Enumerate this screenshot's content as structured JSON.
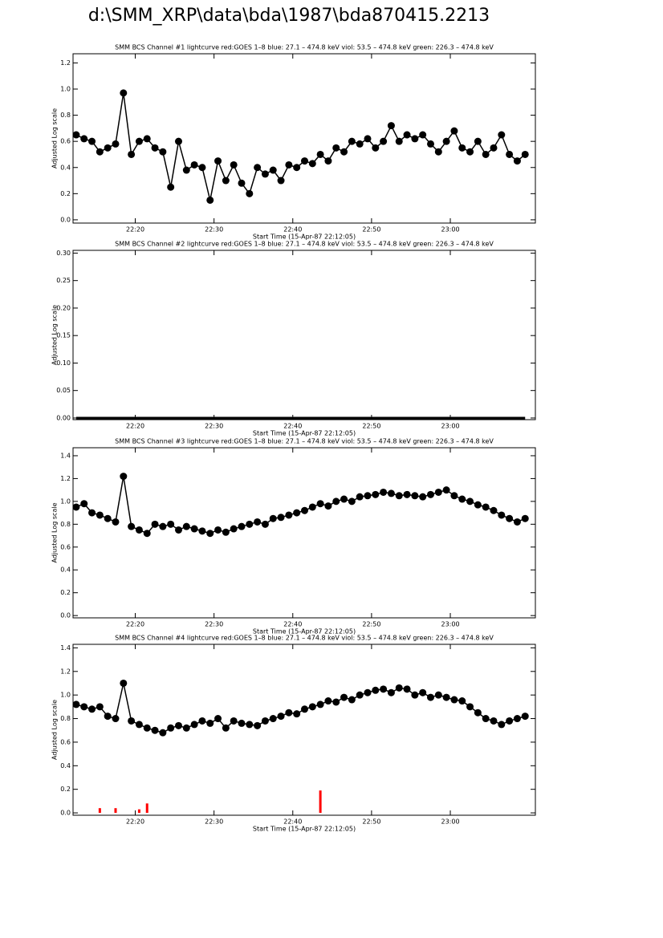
{
  "title": "d:\\SMM_XRP\\data\\bda\\1987\\bda870415.2213",
  "chart_data": [
    {
      "type": "line",
      "title": "SMM BCS Channel #1 lightcurve  red:GOES 1–8  blue: 27.1 – 474.8 keV  viol: 53.5 – 474.8 keV  green: 226.3 – 474.8 keV",
      "x_label": "Start Time (15-Apr-87 22:12:05)",
      "y_label": "Adjusted Log scale",
      "xlim": [
        1332.1,
        1390.8
      ],
      "ylim": [
        -0.025,
        1.27
      ],
      "xticks": [
        {
          "value": 1340,
          "label": "22:20"
        },
        {
          "value": 1350,
          "label": "22:30"
        },
        {
          "value": 1360,
          "label": "22:40"
        },
        {
          "value": 1370,
          "label": "22:50"
        },
        {
          "value": 1380,
          "label": "23:00"
        }
      ],
      "yticks": [
        {
          "value": 0,
          "label": "0.0"
        },
        0.2,
        0.4,
        0.6,
        0.8,
        {
          "value": 1,
          "label": "1.0"
        },
        1.2
      ],
      "x": [
        1332.5,
        1333.5,
        1334.5,
        1335.5,
        1336.5,
        1337.5,
        1338.5,
        1339.5,
        1340.5,
        1341.5,
        1342.5,
        1343.5,
        1344.5,
        1345.5,
        1346.5,
        1347.5,
        1348.5,
        1349.5,
        1350.5,
        1351.5,
        1352.5,
        1353.5,
        1354.5,
        1355.5,
        1356.5,
        1357.5,
        1358.5,
        1359.5,
        1360.5,
        1361.5,
        1362.5,
        1363.5,
        1364.5,
        1365.5,
        1366.5,
        1367.5,
        1368.5,
        1369.5,
        1370.5,
        1371.5,
        1372.5,
        1373.5,
        1374.5,
        1375.5,
        1376.5,
        1377.5,
        1378.5,
        1379.5,
        1380.5,
        1381.5,
        1382.5,
        1383.5,
        1384.5,
        1385.5,
        1386.5,
        1387.5,
        1388.5,
        1389.5
      ],
      "series": [
        {
          "color": "#000000",
          "marker": "circle",
          "values": [
            0.65,
            0.62,
            0.6,
            0.52,
            0.55,
            0.58,
            0.97,
            0.5,
            0.6,
            0.62,
            0.55,
            0.52,
            0.25,
            0.6,
            0.38,
            0.42,
            0.4,
            0.15,
            0.45,
            0.3,
            0.42,
            0.28,
            0.2,
            0.4,
            0.35,
            0.38,
            0.3,
            0.42,
            0.4,
            0.45,
            0.43,
            0.5,
            0.45,
            0.55,
            0.52,
            0.6,
            0.58,
            0.62,
            0.55,
            0.6,
            0.72,
            0.6,
            0.65,
            0.62,
            0.65,
            0.58,
            0.52,
            0.6,
            0.68,
            0.55,
            0.52,
            0.6,
            0.5,
            0.55,
            0.65,
            0.5,
            0.45,
            0.5
          ]
        }
      ]
    },
    {
      "type": "line",
      "title": "SMM BCS Channel #2 lightcurve  red:GOES 1–8  blue: 27.1 – 474.8 keV  viol: 53.5 – 474.8 keV  green: 226.3 – 474.8 keV",
      "x_label": "Start Time (15-Apr-87 22:12:05)",
      "y_label": "Adjusted Log scale",
      "xlim": [
        1332.1,
        1390.8
      ],
      "ylim": [
        -0.003,
        0.305
      ],
      "xticks": [
        {
          "value": 1340,
          "label": "22:20"
        },
        {
          "value": 1350,
          "label": "22:30"
        },
        {
          "value": 1360,
          "label": "22:40"
        },
        {
          "value": 1370,
          "label": "22:50"
        },
        {
          "value": 1380,
          "label": "23:00"
        }
      ],
      "yticks": [
        {
          "value": 0,
          "label": "0.00"
        },
        0.05,
        {
          "value": 0.1,
          "label": "0.10"
        },
        0.15,
        {
          "value": 0.2,
          "label": "0.20"
        },
        0.25,
        {
          "value": 0.3,
          "label": "0.30"
        }
      ],
      "x": [
        1332.5,
        1333.5,
        1334.5,
        1335.5,
        1336.5,
        1337.5,
        1338.5,
        1339.5,
        1340.5,
        1341.5,
        1342.5,
        1343.5,
        1344.5,
        1345.5,
        1346.5,
        1347.5,
        1348.5,
        1349.5,
        1350.5,
        1351.5,
        1352.5,
        1353.5,
        1354.5,
        1355.5,
        1356.5,
        1357.5,
        1358.5,
        1359.5,
        1360.5,
        1361.5,
        1362.5,
        1363.5,
        1364.5,
        1365.5,
        1366.5,
        1367.5,
        1368.5,
        1369.5,
        1370.5,
        1371.5,
        1372.5,
        1373.5,
        1374.5,
        1375.5,
        1376.5,
        1377.5,
        1378.5,
        1379.5,
        1380.5,
        1381.5,
        1382.5,
        1383.5,
        1384.5,
        1385.5,
        1386.5,
        1387.5,
        1388.5,
        1389.5
      ],
      "series": [
        {
          "color": "#000000",
          "marker": "none",
          "values": [
            0,
            0,
            0,
            0,
            0,
            0,
            0,
            0,
            0,
            0,
            0,
            0,
            0,
            0,
            0,
            0,
            0,
            0,
            0,
            0,
            0,
            0,
            0,
            0,
            0,
            0,
            0,
            0,
            0,
            0,
            0,
            0,
            0,
            0,
            0,
            0,
            0,
            0,
            0,
            0,
            0,
            0,
            0,
            0,
            0,
            0,
            0,
            0,
            0,
            0,
            0,
            0,
            0,
            0,
            0,
            0,
            0,
            0
          ]
        }
      ]
    },
    {
      "type": "line",
      "title": "SMM BCS Channel #3 lightcurve  red:GOES 1–8  blue: 27.1 – 474.8 keV  viol: 53.5 – 474.8 keV  green: 226.3 – 474.8 keV",
      "x_label": "Start Time (15-Apr-87 22:12:05)",
      "y_label": "Adjusted Log scale",
      "xlim": [
        1332.1,
        1390.8
      ],
      "ylim": [
        -0.02,
        1.47
      ],
      "xticks": [
        {
          "value": 1340,
          "label": "22:20"
        },
        {
          "value": 1350,
          "label": "22:30"
        },
        {
          "value": 1360,
          "label": "22:40"
        },
        {
          "value": 1370,
          "label": "22:50"
        },
        {
          "value": 1380,
          "label": "23:00"
        }
      ],
      "yticks": [
        {
          "value": 0,
          "label": "0.0"
        },
        0.2,
        0.4,
        0.6,
        0.8,
        {
          "value": 1,
          "label": "1.0"
        },
        1.2,
        1.4
      ],
      "x": [
        1332.5,
        1333.5,
        1334.5,
        1335.5,
        1336.5,
        1337.5,
        1338.5,
        1339.5,
        1340.5,
        1341.5,
        1342.5,
        1343.5,
        1344.5,
        1345.5,
        1346.5,
        1347.5,
        1348.5,
        1349.5,
        1350.5,
        1351.5,
        1352.5,
        1353.5,
        1354.5,
        1355.5,
        1356.5,
        1357.5,
        1358.5,
        1359.5,
        1360.5,
        1361.5,
        1362.5,
        1363.5,
        1364.5,
        1365.5,
        1366.5,
        1367.5,
        1368.5,
        1369.5,
        1370.5,
        1371.5,
        1372.5,
        1373.5,
        1374.5,
        1375.5,
        1376.5,
        1377.5,
        1378.5,
        1379.5,
        1380.5,
        1381.5,
        1382.5,
        1383.5,
        1384.5,
        1385.5,
        1386.5,
        1387.5,
        1388.5,
        1389.5
      ],
      "series": [
        {
          "color": "#000000",
          "marker": "circle",
          "values": [
            0.95,
            0.98,
            0.9,
            0.88,
            0.85,
            0.82,
            1.22,
            0.78,
            0.75,
            0.72,
            0.8,
            0.78,
            0.8,
            0.75,
            0.78,
            0.76,
            0.74,
            0.72,
            0.75,
            0.73,
            0.76,
            0.78,
            0.8,
            0.82,
            0.8,
            0.85,
            0.86,
            0.88,
            0.9,
            0.92,
            0.95,
            0.98,
            0.96,
            1.0,
            1.02,
            1.0,
            1.04,
            1.05,
            1.06,
            1.08,
            1.07,
            1.05,
            1.06,
            1.05,
            1.04,
            1.06,
            1.08,
            1.1,
            1.05,
            1.02,
            1.0,
            0.97,
            0.95,
            0.92,
            0.88,
            0.85,
            0.82,
            0.85
          ]
        }
      ]
    },
    {
      "type": "line",
      "title": "SMM BCS Channel #4 lightcurve  red:GOES 1–8  blue: 27.1 – 474.8 keV  viol: 53.5 – 474.8 keV  green: 226.3 – 474.8 keV",
      "x_label": "Start Time (15-Apr-87 22:12:05)",
      "y_label": "Adjusted Log scale",
      "xlim": [
        1332.1,
        1390.8
      ],
      "ylim": [
        -0.02,
        1.43
      ],
      "xticks": [
        {
          "value": 1340,
          "label": "22:20"
        },
        {
          "value": 1350,
          "label": "22:30"
        },
        {
          "value": 1360,
          "label": "22:40"
        },
        {
          "value": 1370,
          "label": "22:50"
        },
        {
          "value": 1380,
          "label": "23:00"
        }
      ],
      "yticks": [
        {
          "value": 0,
          "label": "0.0"
        },
        0.2,
        0.4,
        0.6,
        0.8,
        {
          "value": 1,
          "label": "1.0"
        },
        1.2,
        1.4
      ],
      "x": [
        1332.5,
        1333.5,
        1334.5,
        1335.5,
        1336.5,
        1337.5,
        1338.5,
        1339.5,
        1340.5,
        1341.5,
        1342.5,
        1343.5,
        1344.5,
        1345.5,
        1346.5,
        1347.5,
        1348.5,
        1349.5,
        1350.5,
        1351.5,
        1352.5,
        1353.5,
        1354.5,
        1355.5,
        1356.5,
        1357.5,
        1358.5,
        1359.5,
        1360.5,
        1361.5,
        1362.5,
        1363.5,
        1364.5,
        1365.5,
        1366.5,
        1367.5,
        1368.5,
        1369.5,
        1370.5,
        1371.5,
        1372.5,
        1373.5,
        1374.5,
        1375.5,
        1376.5,
        1377.5,
        1378.5,
        1379.5,
        1380.5,
        1381.5,
        1382.5,
        1383.5,
        1384.5,
        1385.5,
        1386.5,
        1387.5,
        1388.5,
        1389.5
      ],
      "series": [
        {
          "color": "#000000",
          "marker": "circle",
          "values": [
            0.92,
            0.9,
            0.88,
            0.9,
            0.82,
            0.8,
            1.1,
            0.78,
            0.75,
            0.72,
            0.7,
            0.68,
            0.72,
            0.74,
            0.72,
            0.75,
            0.78,
            0.76,
            0.8,
            0.72,
            0.78,
            0.76,
            0.75,
            0.74,
            0.78,
            0.8,
            0.82,
            0.85,
            0.84,
            0.88,
            0.9,
            0.92,
            0.95,
            0.94,
            0.98,
            0.96,
            1.0,
            1.02,
            1.04,
            1.05,
            1.02,
            1.06,
            1.05,
            1.0,
            1.02,
            0.98,
            1.0,
            0.98,
            0.96,
            0.95,
            0.9,
            0.85,
            0.8,
            0.78,
            0.75,
            0.78,
            0.8,
            0.82
          ]
        },
        {
          "color": "#ff0000",
          "marker": "spike",
          "values": [
            0,
            0,
            0,
            0.04,
            0,
            0.04,
            0,
            0,
            0.03,
            0.08,
            0,
            0,
            0,
            0,
            0,
            0,
            0,
            0,
            0,
            0,
            0,
            0,
            0,
            0,
            0,
            0,
            0,
            0,
            0,
            0,
            0,
            0.19,
            0,
            0,
            0,
            0,
            0,
            0,
            0,
            0,
            0,
            0,
            0,
            0,
            0,
            0,
            0,
            0,
            0,
            0,
            0,
            0,
            0,
            0,
            0,
            0,
            0,
            0
          ]
        }
      ]
    }
  ]
}
